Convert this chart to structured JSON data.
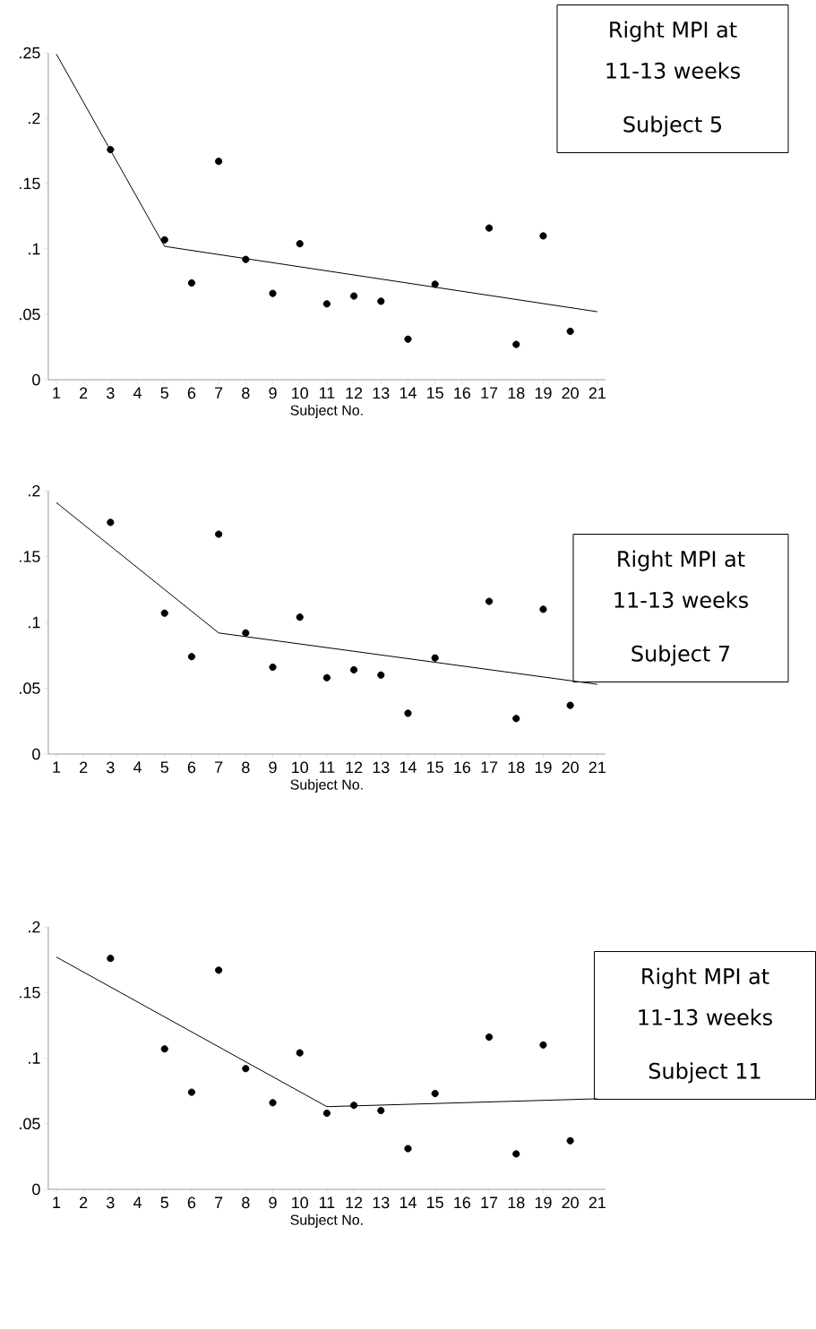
{
  "chart_data": [
    {
      "type": "scatter",
      "xlabel": "Subject No.",
      "annotations": [
        "Right MPI at",
        "11-13 weeks",
        "Subject 5"
      ],
      "xlim": [
        0.7,
        21.3
      ],
      "xticks": [
        1,
        2,
        3,
        4,
        5,
        6,
        7,
        8,
        9,
        10,
        11,
        12,
        13,
        14,
        15,
        16,
        17,
        18,
        19,
        20,
        21
      ],
      "ylim": [
        0,
        0.25
      ],
      "yticks": [
        0,
        {
          "value": 0.05,
          "label": ".05"
        },
        {
          "value": 0.1,
          "label": ".1"
        },
        {
          "value": 0.15,
          "label": ".15"
        },
        {
          "value": 0.2,
          "label": ".2"
        },
        {
          "value": 0.25,
          "label": ".25"
        }
      ],
      "series": [
        {
          "type": "scatter",
          "marker": "circle",
          "color": "#000000",
          "x": [
            3,
            5,
            6,
            7,
            8,
            9,
            10,
            11,
            12,
            13,
            14,
            15,
            17,
            18,
            19,
            20
          ],
          "values": [
            0.176,
            0.107,
            0.074,
            0.167,
            0.092,
            0.066,
            0.104,
            0.058,
            0.064,
            0.06,
            0.031,
            0.073,
            0.116,
            0.027,
            0.11,
            0.037
          ]
        },
        {
          "type": "line",
          "color": "#000000",
          "x": [
            1,
            5,
            21
          ],
          "values": [
            0.249,
            0.102,
            0.052
          ]
        }
      ]
    },
    {
      "type": "scatter",
      "xlabel": "Subject No.",
      "annotations": [
        "Right MPI at",
        "11-13 weeks",
        "Subject 7"
      ],
      "xlim": [
        0.7,
        21.3
      ],
      "xticks": [
        1,
        2,
        3,
        4,
        5,
        6,
        7,
        8,
        9,
        10,
        11,
        12,
        13,
        14,
        15,
        16,
        17,
        18,
        19,
        20,
        21
      ],
      "ylim": [
        0,
        0.2
      ],
      "yticks": [
        0,
        {
          "value": 0.05,
          "label": ".05"
        },
        {
          "value": 0.1,
          "label": ".1"
        },
        {
          "value": 0.15,
          "label": ".15"
        },
        {
          "value": 0.2,
          "label": ".2"
        }
      ],
      "series": [
        {
          "type": "scatter",
          "marker": "circle",
          "color": "#000000",
          "x": [
            3,
            5,
            6,
            7,
            8,
            9,
            10,
            11,
            12,
            13,
            14,
            15,
            17,
            18,
            19,
            20
          ],
          "values": [
            0.176,
            0.107,
            0.074,
            0.167,
            0.092,
            0.066,
            0.104,
            0.058,
            0.064,
            0.06,
            0.031,
            0.073,
            0.116,
            0.027,
            0.11,
            0.037
          ]
        },
        {
          "type": "line",
          "color": "#000000",
          "x": [
            1,
            7,
            21
          ],
          "values": [
            0.191,
            0.092,
            0.053
          ]
        }
      ]
    },
    {
      "type": "scatter",
      "xlabel": "Subject No.",
      "annotations": [
        "Right MPI at",
        "11-13 weeks",
        "Subject 11"
      ],
      "xlim": [
        0.7,
        21.3
      ],
      "xticks": [
        1,
        2,
        3,
        4,
        5,
        6,
        7,
        8,
        9,
        10,
        11,
        12,
        13,
        14,
        15,
        16,
        17,
        18,
        19,
        20,
        21
      ],
      "ylim": [
        0,
        0.2
      ],
      "yticks": [
        0,
        {
          "value": 0.05,
          "label": ".05"
        },
        {
          "value": 0.1,
          "label": ".1"
        },
        {
          "value": 0.15,
          "label": ".15"
        },
        {
          "value": 0.2,
          "label": ".2"
        }
      ],
      "series": [
        {
          "type": "scatter",
          "marker": "circle",
          "color": "#000000",
          "x": [
            3,
            5,
            6,
            7,
            8,
            9,
            10,
            11,
            12,
            13,
            14,
            15,
            17,
            18,
            19,
            20
          ],
          "values": [
            0.176,
            0.107,
            0.074,
            0.167,
            0.092,
            0.066,
            0.104,
            0.058,
            0.064,
            0.06,
            0.031,
            0.073,
            0.116,
            0.027,
            0.11,
            0.037
          ]
        },
        {
          "type": "line",
          "color": "#000000",
          "x": [
            1,
            11,
            21
          ],
          "values": [
            0.177,
            0.063,
            0.069
          ]
        }
      ]
    }
  ]
}
